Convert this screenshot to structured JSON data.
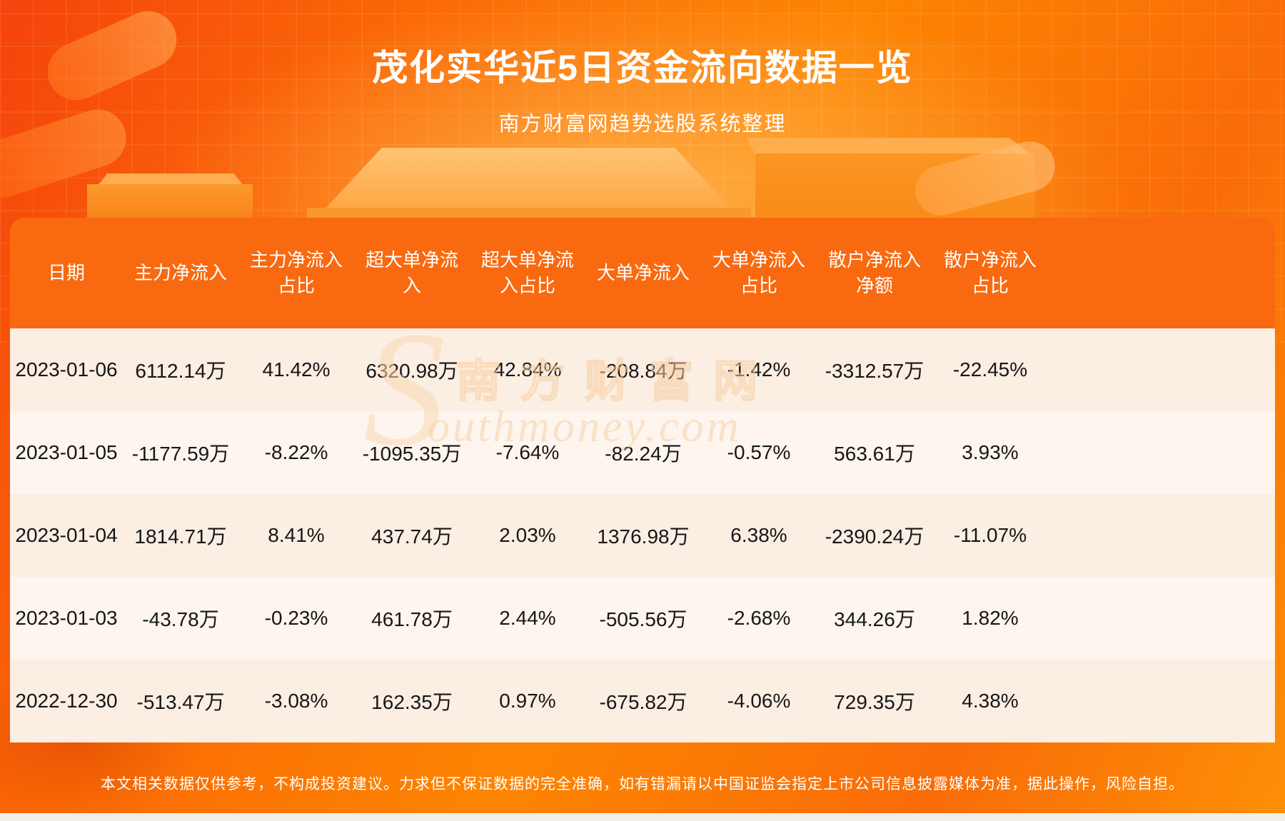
{
  "header": {
    "title": "茂化实华近5日资金流向数据一览",
    "subtitle": "南方财富网趋势选股系统整理"
  },
  "chart_data": {
    "type": "table",
    "title": "茂化实华近5日资金流向数据一览",
    "subtitle": "南方财富网趋势选股系统整理",
    "columns": [
      "日期",
      "主力净流入",
      "主力净流入\n占比",
      "超大单净流\n入",
      "超大单净流\n入占比",
      "大单净流入",
      "大单净流入\n占比",
      "散户净流入\n净额",
      "散户净流入\n占比"
    ],
    "rows": [
      [
        "2023-01-06",
        "6112.14万",
        "41.42%",
        "6320.98万",
        "42.84%",
        "-208.84万",
        "-1.42%",
        "-3312.57万",
        "-22.45%"
      ],
      [
        "2023-01-05",
        "-1177.59万",
        "-8.22%",
        "-1095.35万",
        "-7.64%",
        "-82.24万",
        "-0.57%",
        "563.61万",
        "3.93%"
      ],
      [
        "2023-01-04",
        "1814.71万",
        "8.41%",
        "437.74万",
        "2.03%",
        "1376.98万",
        "6.38%",
        "-2390.24万",
        "-11.07%"
      ],
      [
        "2023-01-03",
        "-43.78万",
        "-0.23%",
        "461.78万",
        "2.44%",
        "-505.56万",
        "-2.68%",
        "344.26万",
        "1.82%"
      ],
      [
        "2022-12-30",
        "-513.47万",
        "-3.08%",
        "162.35万",
        "0.97%",
        "-675.82万",
        "-4.06%",
        "729.35万",
        "4.38%"
      ]
    ]
  },
  "watermark": {
    "initial": "S",
    "cn": "南方财富网",
    "en": "outhmoney.com"
  },
  "footer": {
    "disclaimer": "本文相关数据仅供参考，不构成投资建议。力求但不保证数据的完全准确，如有错漏请以中国证监会指定上市公司信息披露媒体为准，据此操作，风险自担。"
  },
  "colors": {
    "header_bg": "#f9690f",
    "row_odd": "#fbeee3",
    "row_even": "#fdf5ee",
    "background_orange": "#fd8502",
    "title_text": "#ffffff",
    "cell_text": "#161616"
  }
}
